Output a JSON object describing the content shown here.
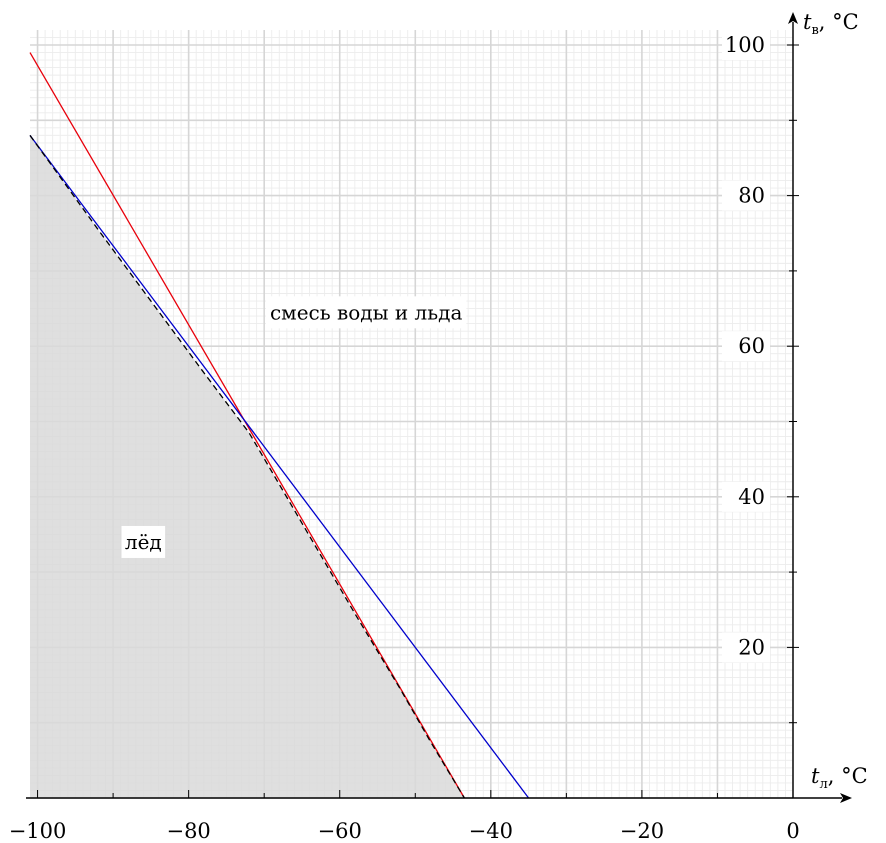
{
  "chart_data": {
    "type": "line",
    "x_axis": {
      "label_var": "t",
      "label_sub": "л",
      "label_unit": ", °C",
      "range": [
        -101,
        0
      ],
      "ticks": [
        -100,
        -80,
        -60,
        -40,
        -20,
        0
      ],
      "tick_labels": [
        "−100",
        "−80",
        "−60",
        "−40",
        "−20",
        "0"
      ]
    },
    "y_axis": {
      "label_var": "t",
      "label_sub": "в",
      "label_unit": ", °C",
      "range": [
        0,
        100
      ],
      "ticks": [
        20,
        40,
        60,
        80,
        100
      ],
      "tick_labels": [
        "20",
        "40",
        "60",
        "80",
        "100"
      ]
    },
    "grid": true,
    "series": [
      {
        "color": "#e8000b",
        "style": "solid",
        "x": [
          -101,
          -43.5
        ],
        "y": [
          99,
          0
        ]
      },
      {
        "color": "#0000cc",
        "style": "solid",
        "x": [
          -101,
          -35
        ],
        "y": [
          88,
          0
        ]
      },
      {
        "color": "#000000",
        "style": "dashed",
        "x": [
          -101,
          -92,
          -85,
          -78,
          -72,
          -65,
          -58,
          -52,
          -48,
          -43.5
        ],
        "y": [
          88,
          75.5,
          66,
          56.5,
          48.5,
          36.5,
          24.5,
          14.5,
          7.5,
          0
        ]
      }
    ],
    "regions": [
      {
        "label": "лёд",
        "fill": "#d9d9d9",
        "label_at": [
          -86,
          34
        ]
      },
      {
        "label": "смесь воды и льда",
        "fill": "#ffffff",
        "label_at": [
          -56.5,
          64.5
        ]
      }
    ]
  }
}
